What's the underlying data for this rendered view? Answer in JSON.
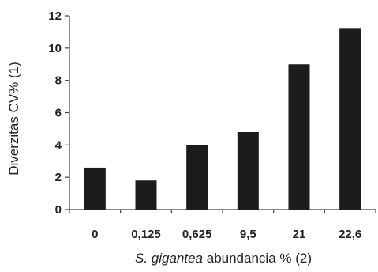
{
  "chart_data": {
    "type": "bar",
    "title": "",
    "categories": [
      "0",
      "0,125",
      "0,625",
      "9,5",
      "21",
      "22,6"
    ],
    "values": [
      2.6,
      1.8,
      4.0,
      4.8,
      9.0,
      11.2
    ],
    "ylim": [
      0,
      12
    ],
    "yticks": [
      "0",
      "2",
      "4",
      "6",
      "8",
      "10",
      "12"
    ],
    "ylabel": "Diverzitás CV% (1)",
    "xlabel": {
      "italic": "S. gigantea",
      "rest": " abundancia % (2)"
    },
    "grid": false,
    "bar_color": "#1c1c1c"
  }
}
